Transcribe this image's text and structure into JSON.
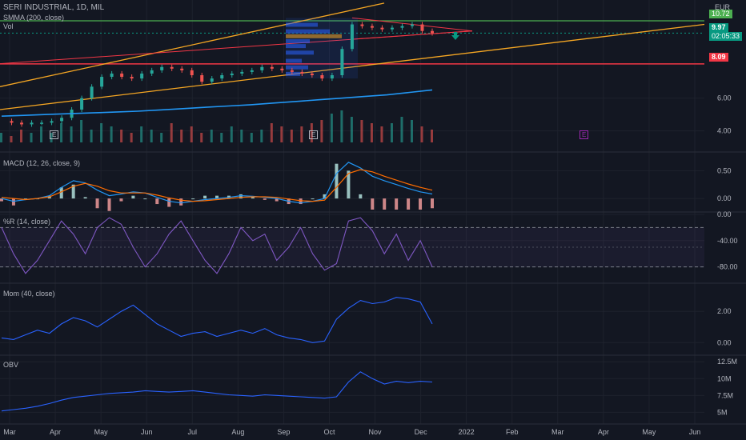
{
  "header": {
    "symbol": "SERI INDUSTRIAL, 1D, MIL",
    "indicator_smma": "SMMA (200, close)",
    "indicator_vol": "Vol",
    "currency": "EUR"
  },
  "price_tags": {
    "upper_line": "10.72",
    "last_price": "9.97",
    "countdown": "02:05:33",
    "support_line": "8.09"
  },
  "panes": {
    "macd_title": "MACD (12, 26, close, 9)",
    "wr_title": "%R (14, close)",
    "mom_title": "Mom (40, close)",
    "obv_title": "OBV"
  },
  "earnings_marker": "E",
  "colors": {
    "background": "#131722",
    "candle_up": "#26a69a",
    "candle_down": "#ef5350",
    "smma": "#2196f3",
    "trend_orange": "#f5a623",
    "support_red": "#f23645",
    "resistance_green": "#4caf50",
    "macd_line": "#2196f3",
    "signal_line": "#ff6d00",
    "indicator_purple": "#7e57c2",
    "arrow_teal": "#089981"
  },
  "chart_data": {
    "type": "line",
    "x_tick_labels": [
      "Mar",
      "Apr",
      "May",
      "Jun",
      "Jul",
      "Aug",
      "Sep",
      "Oct",
      "Nov",
      "Dec",
      "2022",
      "Feb",
      "Mar",
      "Apr",
      "May",
      "Jun"
    ],
    "price_axis_ticks": [
      "6.00",
      "4.00"
    ],
    "macd_axis_ticks": [
      "0.50",
      "0.00"
    ],
    "wr_axis_ticks": [
      "0.00",
      "-40.00",
      "-80.00"
    ],
    "mom_axis_ticks": [
      "2.00",
      "0.00"
    ],
    "obv_axis_ticks": [
      "12.5M",
      "10M",
      "7.5M",
      "5M"
    ],
    "price_ylim": [
      3.2,
      11.6
    ],
    "price_close": [
      4.6,
      4.5,
      4.4,
      4.5,
      4.5,
      4.6,
      4.8,
      5.3,
      6.0,
      6.7,
      7.3,
      7.5,
      7.3,
      7.2,
      7.5,
      7.7,
      7.9,
      7.8,
      7.7,
      7.4,
      7.0,
      7.2,
      7.4,
      7.5,
      7.6,
      7.7,
      7.9,
      7.8,
      7.7,
      7.6,
      7.5,
      7.4,
      7.2,
      7.4,
      9.0,
      10.5,
      10.4,
      10.3,
      10.2,
      10.3,
      10.4,
      10.5,
      10.1,
      9.97
    ],
    "smma_200": [
      4.9,
      4.95,
      5.0,
      5.05,
      5.1,
      5.15,
      5.2,
      5.28,
      5.36,
      5.44,
      5.52,
      5.6,
      5.7,
      5.8,
      5.9,
      6.0,
      6.1,
      6.2,
      6.35,
      6.5
    ],
    "upper_line_value": 10.72,
    "support_line_value": 8.09,
    "volume_relative": [
      0.3,
      0.2,
      0.4,
      0.3,
      0.5,
      0.3,
      0.6,
      0.5,
      0.7,
      0.4,
      0.6,
      0.5,
      0.4,
      0.3,
      0.5,
      0.4,
      0.3,
      0.6,
      0.4,
      0.5,
      0.3,
      0.4,
      0.3,
      0.5,
      0.4,
      0.3,
      0.4,
      0.6,
      0.5,
      0.4,
      0.5,
      0.6,
      0.7,
      0.9,
      1.0,
      0.8,
      0.7,
      0.6,
      0.5,
      0.6,
      0.8,
      0.7,
      0.5,
      0.4
    ],
    "macd_ylim": [
      -0.2,
      0.75
    ],
    "macd": [
      0.0,
      -0.05,
      -0.02,
      0.0,
      0.05,
      0.2,
      0.32,
      0.28,
      0.15,
      0.05,
      0.08,
      0.12,
      0.1,
      0.02,
      -0.05,
      -0.08,
      -0.05,
      -0.02,
      0.0,
      0.02,
      0.05,
      0.04,
      0.02,
      0.0,
      -0.05,
      -0.08,
      -0.05,
      0.0,
      0.45,
      0.65,
      0.55,
      0.4,
      0.32,
      0.25,
      0.18,
      0.12,
      0.08
    ],
    "macd_signal": [
      0.02,
      0.0,
      -0.02,
      0.0,
      0.03,
      0.12,
      0.22,
      0.27,
      0.22,
      0.14,
      0.1,
      0.1,
      0.1,
      0.06,
      0.01,
      -0.03,
      -0.05,
      -0.04,
      -0.02,
      0.0,
      0.02,
      0.03,
      0.03,
      0.02,
      -0.01,
      -0.04,
      -0.05,
      -0.03,
      0.2,
      0.45,
      0.52,
      0.48,
      0.4,
      0.33,
      0.26,
      0.2,
      0.15
    ],
    "wr_ylim": [
      -100,
      0
    ],
    "williams_r": [
      -20,
      -60,
      -90,
      -70,
      -40,
      -10,
      -30,
      -60,
      -20,
      -5,
      -15,
      -50,
      -80,
      -60,
      -30,
      -10,
      -40,
      -70,
      -90,
      -60,
      -20,
      -40,
      -30,
      -70,
      -50,
      -20,
      -60,
      -85,
      -75,
      -10,
      -5,
      -25,
      -60,
      -30,
      -70,
      -40,
      -80
    ],
    "mom_ylim": [
      -0.6,
      3.6
    ],
    "momentum": [
      0.3,
      0.2,
      0.5,
      0.8,
      0.6,
      1.2,
      1.6,
      1.4,
      1.0,
      1.5,
      2.0,
      2.4,
      1.8,
      1.2,
      0.8,
      0.4,
      0.6,
      0.7,
      0.4,
      0.6,
      0.8,
      0.6,
      0.9,
      0.5,
      0.3,
      0.2,
      0.0,
      0.1,
      1.5,
      2.2,
      2.7,
      2.5,
      2.6,
      2.9,
      2.8,
      2.6,
      1.2
    ],
    "obv_ylim": [
      3.5,
      13
    ],
    "obv": [
      5.2,
      5.4,
      5.6,
      5.9,
      6.3,
      6.8,
      7.2,
      7.4,
      7.6,
      7.8,
      7.9,
      8.0,
      8.2,
      8.1,
      8.0,
      8.1,
      8.2,
      8.0,
      7.8,
      7.6,
      7.5,
      7.4,
      7.6,
      7.5,
      7.4,
      7.3,
      7.2,
      7.1,
      7.3,
      9.5,
      11.0,
      10.0,
      9.2,
      9.6,
      9.4,
      9.6,
      9.5
    ]
  }
}
